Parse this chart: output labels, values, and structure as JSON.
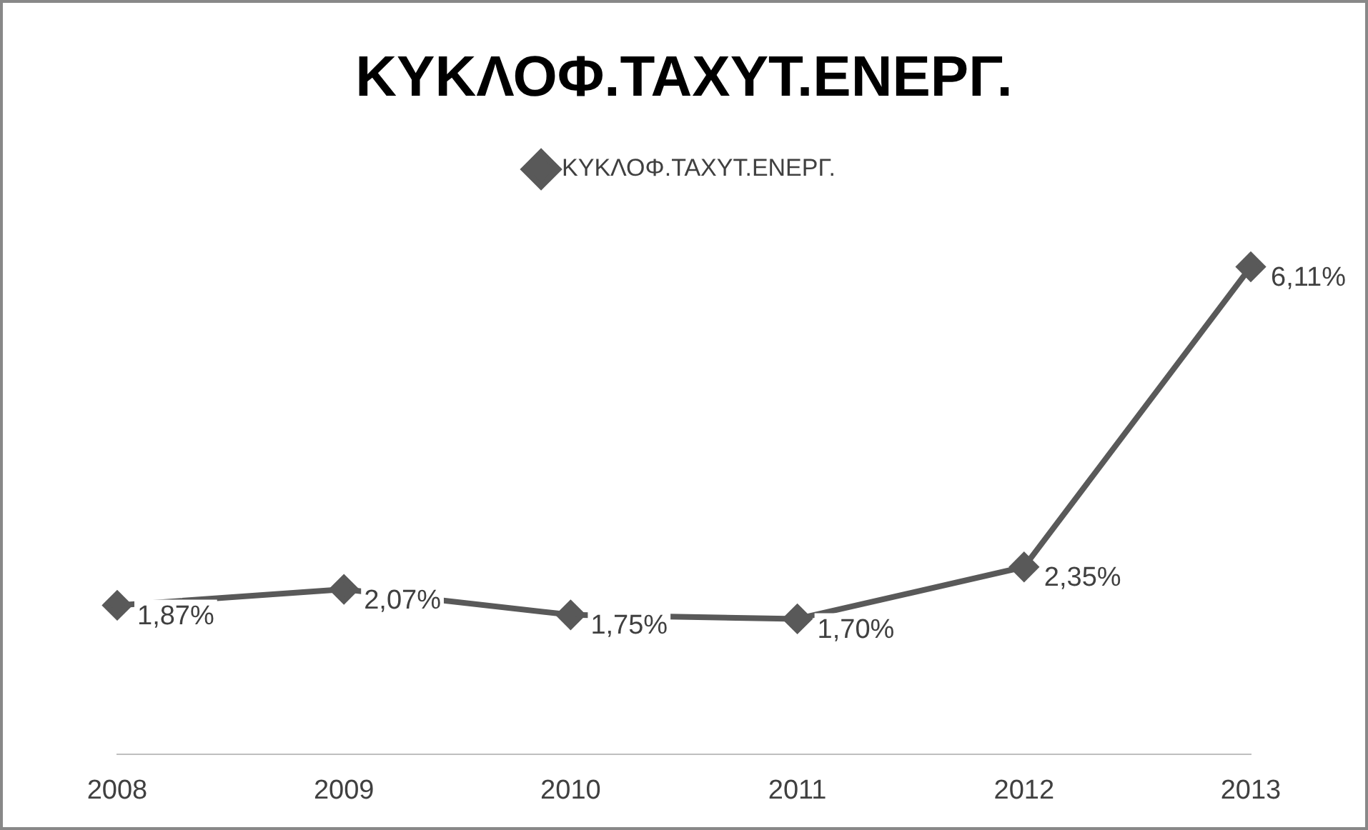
{
  "chart_data": {
    "type": "line",
    "title": "ΚΥΚΛΟΦ.ΤΑΧΥΤ.ΕΝΕΡΓ.",
    "categories": [
      "2008",
      "2009",
      "2010",
      "2011",
      "2012",
      "2013"
    ],
    "series": [
      {
        "name": "ΚΥΚΛΟΦ.ΤΑΧΥΤ.ΕΝΕΡΓ.",
        "color": "#595959",
        "values": [
          1.87,
          2.07,
          1.75,
          1.7,
          2.35,
          6.11
        ],
        "value_labels": [
          "1,87%",
          "2,07%",
          "1,75%",
          "1,70%",
          "2,35%",
          "6,11%"
        ]
      }
    ],
    "legend": "top",
    "marker": "diamond",
    "line_style": "solid",
    "grid": false
  }
}
